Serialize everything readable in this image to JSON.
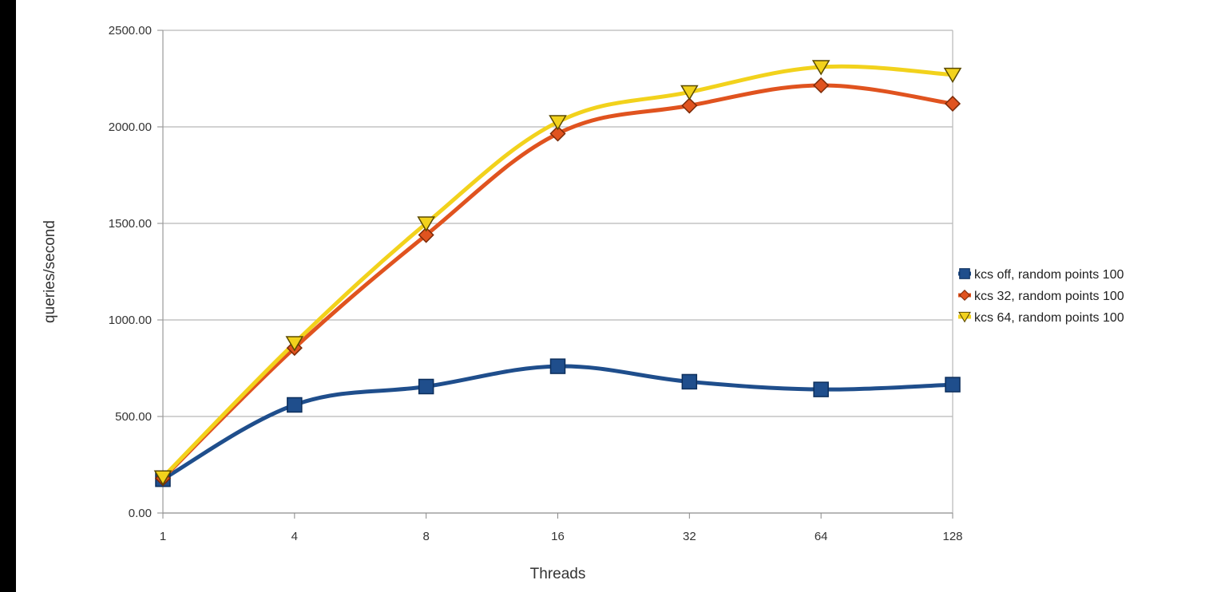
{
  "chart_data": {
    "type": "line",
    "x": [
      "1",
      "4",
      "8",
      "16",
      "32",
      "64",
      "128"
    ],
    "xlabel": "Threads",
    "ylabel": "queries/second",
    "ylim": [
      0,
      2500
    ],
    "yticks": [
      "0.00",
      "500.00",
      "1000.00",
      "1500.00",
      "2000.00",
      "2500.00"
    ],
    "grid": true,
    "legend": "right",
    "series": [
      {
        "name": "kcs off, random points 100",
        "values": [
          175,
          560,
          655,
          760,
          680,
          640,
          665
        ],
        "color": "#1f4e8c",
        "marker": "square"
      },
      {
        "name": "kcs 32, random points 100",
        "values": [
          180,
          855,
          1440,
          1965,
          2110,
          2215,
          2120
        ],
        "color": "#e0531f",
        "marker": "diamond"
      },
      {
        "name": "kcs 64, random points 100",
        "values": [
          185,
          880,
          1500,
          2025,
          2180,
          2310,
          2270
        ],
        "color": "#f2d21c",
        "marker": "triangle-down"
      }
    ]
  }
}
